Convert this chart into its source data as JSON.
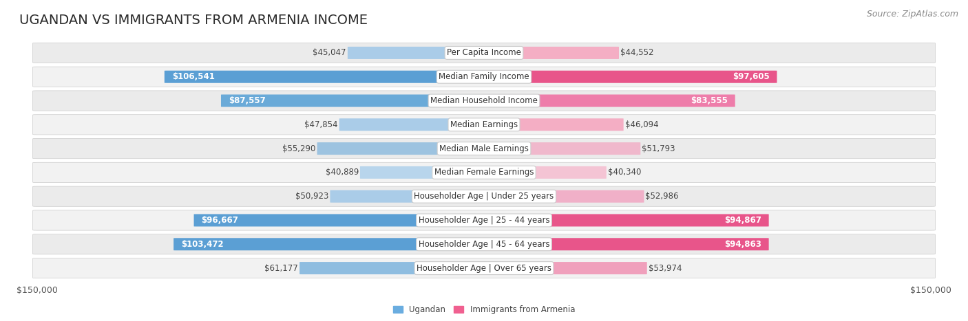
{
  "title": "UGANDAN VS IMMIGRANTS FROM ARMENIA INCOME",
  "source": "Source: ZipAtlas.com",
  "categories": [
    "Per Capita Income",
    "Median Family Income",
    "Median Household Income",
    "Median Earnings",
    "Median Male Earnings",
    "Median Female Earnings",
    "Householder Age | Under 25 years",
    "Householder Age | 25 - 44 years",
    "Householder Age | 45 - 64 years",
    "Householder Age | Over 65 years"
  ],
  "ugandan": [
    45047,
    106541,
    87557,
    47854,
    55290,
    40889,
    50923,
    96667,
    103472,
    61177
  ],
  "armenia": [
    44552,
    97605,
    83555,
    46094,
    51793,
    40340,
    52986,
    94867,
    94863,
    53974
  ],
  "ugandan_colors": [
    "#aacce8",
    "#5b9fd4",
    "#6aaad8",
    "#aacce8",
    "#9dc3e0",
    "#b8d5ec",
    "#aacce8",
    "#5b9fd4",
    "#5b9fd4",
    "#8fbde0"
  ],
  "armenia_colors": [
    "#f4aec4",
    "#e8558a",
    "#ee7daa",
    "#f4aec4",
    "#f0b8cc",
    "#f4c4d4",
    "#f0b0c8",
    "#e8558a",
    "#e8558a",
    "#f0a0bc"
  ],
  "ugandan_white_text": [
    false,
    true,
    true,
    false,
    false,
    false,
    false,
    true,
    true,
    false
  ],
  "armenia_white_text": [
    false,
    true,
    true,
    false,
    false,
    false,
    false,
    true,
    true,
    false
  ],
  "row_bg_color": "#e8e8e8",
  "row_bg_color_alt": "#f0f0f0",
  "bg_color": "#ffffff",
  "max_value": 150000,
  "ugandan_label": "Ugandan",
  "armenia_label": "Immigrants from Armenia",
  "title_fontsize": 14,
  "label_fontsize": 8.5,
  "value_fontsize": 8.5,
  "tick_fontsize": 9,
  "source_fontsize": 9,
  "legend_color_ug": "#6aade0",
  "legend_color_arm": "#f06090"
}
